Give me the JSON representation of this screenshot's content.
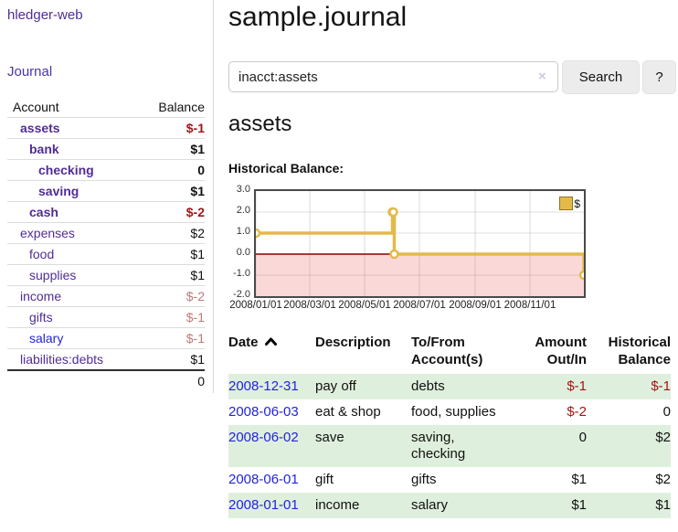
{
  "colors": {
    "brand_purple": "#512d96",
    "nav_purple": "#4b35a5",
    "link_blue": "#2323dd",
    "negative_red": "#a31515",
    "muted_red": "#c07878",
    "row_green": "#dfefdd",
    "chart_gold": "#e3ba4a",
    "chart_negative_bg": "#fbd8d8",
    "chart_zero_line": "#8b0000",
    "button_bg": "#ececec"
  },
  "app": {
    "brand": "hledger-web",
    "nav": {
      "journal": "Journal"
    }
  },
  "sidebar": {
    "account_header": "Account",
    "balance_header": "Balance",
    "accounts": [
      {
        "name": "assets",
        "indent": 0,
        "bold": true,
        "link": "purple",
        "balance": "$-1",
        "balance_style": "negative"
      },
      {
        "name": "bank",
        "indent": 1,
        "bold": true,
        "link": "purple",
        "balance": "$1",
        "balance_style": "normal"
      },
      {
        "name": "checking",
        "indent": 2,
        "bold": true,
        "link": "purple",
        "balance": "0",
        "balance_style": "normal"
      },
      {
        "name": "saving",
        "indent": 2,
        "bold": true,
        "link": "purple",
        "balance": "$1",
        "balance_style": "normal"
      },
      {
        "name": "cash",
        "indent": 1,
        "bold": true,
        "link": "purple",
        "balance": "$-2",
        "balance_style": "negative"
      },
      {
        "name": "expenses",
        "indent": 0,
        "bold": false,
        "link": "purple",
        "balance": "$2",
        "balance_style": "normal"
      },
      {
        "name": "food",
        "indent": 1,
        "bold": false,
        "link": "purple",
        "balance": "$1",
        "balance_style": "normal"
      },
      {
        "name": "supplies",
        "indent": 1,
        "bold": false,
        "link": "purple",
        "balance": "$1",
        "balance_style": "normal"
      },
      {
        "name": "income",
        "indent": 0,
        "bold": false,
        "link": "purple",
        "balance": "$-2",
        "balance_style": "muted"
      },
      {
        "name": "gifts",
        "indent": 1,
        "bold": false,
        "link": "purple",
        "balance": "$-1",
        "balance_style": "muted"
      },
      {
        "name": "salary",
        "indent": 1,
        "bold": false,
        "link": "blue",
        "balance": "$-1",
        "balance_style": "muted"
      },
      {
        "name": "liabilities:debts",
        "indent": 0,
        "bold": false,
        "link": "purple",
        "balance": "$1",
        "balance_style": "normal"
      }
    ],
    "total": "0"
  },
  "main": {
    "title": "sample.journal",
    "search": {
      "value": "inacct:assets",
      "clear_icon": "×",
      "search_button": "Search",
      "help_button": "?"
    },
    "account_title": "assets",
    "chart_label": "Historical Balance:"
  },
  "chart_data": {
    "type": "line",
    "step": true,
    "title": "Historical Balance",
    "ylim": [
      -2,
      3
    ],
    "y_ticks": [
      "3.0",
      "2.0",
      "1.0",
      "0.0",
      "-1.0",
      "-2.0"
    ],
    "x_ticks": [
      "2008/01/01",
      "2008/03/01",
      "2008/05/01",
      "2008/07/01",
      "2008/09/01",
      "2008/11/01"
    ],
    "x_range": [
      "2008-01-01",
      "2008-12-31"
    ],
    "legend": {
      "label": "$",
      "position": "top-right"
    },
    "grid": true,
    "series": [
      {
        "name": "$",
        "points": [
          {
            "date": "2008-01-01",
            "value": 1
          },
          {
            "date": "2008-06-01",
            "value": 2
          },
          {
            "date": "2008-06-02",
            "value": 2
          },
          {
            "date": "2008-06-03",
            "value": 0
          },
          {
            "date": "2008-12-31",
            "value": -1
          }
        ]
      }
    ]
  },
  "register": {
    "columns": {
      "date": "Date",
      "description": "Description",
      "accounts": "To/From Account(s)",
      "amount": "Amount Out/In",
      "balance": "Historical Balance"
    },
    "rows": [
      {
        "date": "2008-12-31",
        "description": "pay off",
        "accounts": "debts",
        "amount": "$-1",
        "amount_style": "negative",
        "balance": "$-1",
        "balance_style": "negative"
      },
      {
        "date": "2008-06-03",
        "description": "eat & shop",
        "accounts": "food, supplies",
        "amount": "$-2",
        "amount_style": "negative",
        "balance": "0",
        "balance_style": "normal"
      },
      {
        "date": "2008-06-02",
        "description": "save",
        "accounts": "saving, checking",
        "amount": "0",
        "amount_style": "normal",
        "balance": "$2",
        "balance_style": "normal"
      },
      {
        "date": "2008-06-01",
        "description": "gift",
        "accounts": "gifts",
        "amount": "$1",
        "amount_style": "normal",
        "balance": "$2",
        "balance_style": "normal"
      },
      {
        "date": "2008-01-01",
        "description": "income",
        "accounts": "salary",
        "amount": "$1",
        "amount_style": "normal",
        "balance": "$1",
        "balance_style": "normal"
      }
    ]
  }
}
